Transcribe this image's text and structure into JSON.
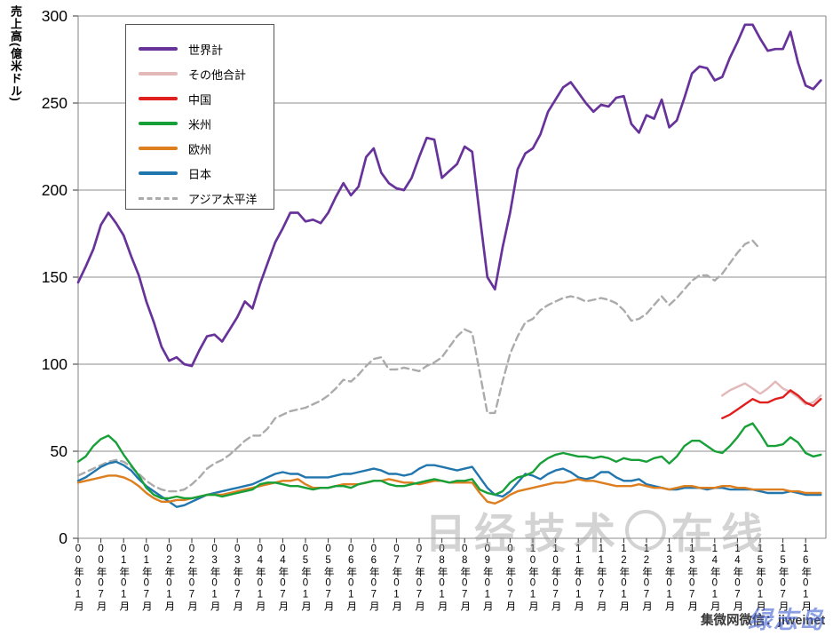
{
  "watermarks": {
    "center_left": "日经技术",
    "center_right": "在线",
    "credit": "集微网微信：jiweinet",
    "signature": "绿志岛"
  },
  "chart_data": {
    "type": "line",
    "title": "",
    "xlabel": "",
    "ylabel": "売上高(億米ドル)",
    "ylim": [
      0,
      300
    ],
    "y_ticks": [
      0,
      50,
      100,
      150,
      200,
      250,
      300
    ],
    "grid": true,
    "legend_position": "top-left",
    "x_start": "2000-01",
    "x_step_months": 2,
    "x_tick_labels": [
      "00年01月",
      "00年07月",
      "01年01月",
      "01年07月",
      "02年01月",
      "02年07月",
      "03年01月",
      "03年07月",
      "04年01月",
      "04年07月",
      "05年01月",
      "05年07月",
      "06年01月",
      "06年07月",
      "07年01月",
      "07年07月",
      "08年01月",
      "08年07月",
      "09年01月",
      "09年07月",
      "10年01月",
      "10年07月",
      "11年01月",
      "11年07月",
      "12年01月",
      "12年07月",
      "13年01月",
      "13年07月",
      "14年01月",
      "14年07月",
      "15年01月",
      "15年07月",
      "16年01月"
    ],
    "series": [
      {
        "id": "world",
        "name": "世界計",
        "color": "#67339A",
        "dash": false,
        "width": 2.7,
        "start_index": 0,
        "values": [
          147,
          156,
          166,
          180,
          187,
          181,
          174,
          162,
          151,
          136,
          124,
          110,
          102,
          104,
          100,
          99,
          108,
          116,
          117,
          113,
          120,
          127,
          136,
          132,
          146,
          158,
          170,
          178,
          187,
          187,
          182,
          183,
          181,
          187,
          196,
          204,
          197,
          202,
          219,
          224,
          210,
          204,
          201,
          200,
          207,
          219,
          230,
          229,
          207,
          211,
          215,
          225,
          222,
          185,
          150,
          143,
          167,
          187,
          212,
          221,
          224,
          232,
          245,
          252,
          259,
          262,
          256,
          250,
          245,
          249,
          248,
          253,
          254,
          238,
          233,
          243,
          241,
          252,
          236,
          240,
          253,
          267,
          271,
          270,
          263,
          265,
          276,
          285,
          295,
          295,
          287,
          280,
          281,
          281,
          291,
          273,
          260,
          258,
          263
        ]
      },
      {
        "id": "other_total",
        "name": "その他合計",
        "color": "#E2B8B8",
        "dash": false,
        "width": 2.4,
        "start_index": 85,
        "values": [
          82,
          85,
          87,
          89,
          86,
          83,
          86,
          90,
          86,
          84,
          81,
          77,
          78,
          82
        ]
      },
      {
        "id": "china",
        "name": "中国",
        "color": "#E01F1F",
        "dash": false,
        "width": 2.4,
        "start_index": 85,
        "values": [
          69,
          71,
          74,
          77,
          80,
          78,
          78,
          80,
          81,
          85,
          82,
          78,
          76,
          80
        ]
      },
      {
        "id": "americas",
        "name": "米州",
        "color": "#18A038",
        "dash": false,
        "width": 2.4,
        "start_index": 0,
        "values": [
          44,
          47,
          53,
          57,
          59,
          55,
          48,
          42,
          36,
          29,
          25,
          23,
          23,
          24,
          23,
          23,
          24,
          25,
          25,
          24,
          25,
          26,
          27,
          28,
          31,
          32,
          32,
          31,
          30,
          30,
          29,
          28,
          29,
          29,
          30,
          30,
          29,
          31,
          32,
          33,
          33,
          31,
          30,
          30,
          31,
          32,
          33,
          34,
          33,
          32,
          33,
          33,
          34,
          28,
          26,
          25,
          27,
          32,
          35,
          36,
          38,
          43,
          46,
          48,
          49,
          48,
          47,
          47,
          46,
          47,
          46,
          44,
          46,
          45,
          45,
          44,
          46,
          47,
          43,
          47,
          53,
          56,
          56,
          53,
          50,
          49,
          53,
          58,
          64,
          66,
          60,
          53,
          53,
          54,
          58,
          55,
          49,
          47,
          48
        ]
      },
      {
        "id": "europe",
        "name": "欧州",
        "color": "#DD7E1F",
        "dash": false,
        "width": 2.4,
        "start_index": 0,
        "values": [
          32,
          33,
          34,
          35,
          36,
          36,
          35,
          33,
          30,
          26,
          23,
          21,
          21,
          22,
          22,
          23,
          24,
          25,
          25,
          25,
          26,
          27,
          28,
          29,
          30,
          31,
          32,
          33,
          33,
          34,
          31,
          29,
          29,
          29,
          30,
          31,
          31,
          31,
          32,
          33,
          33,
          34,
          33,
          32,
          32,
          31,
          32,
          33,
          33,
          32,
          32,
          32,
          32,
          26,
          21,
          20,
          22,
          25,
          27,
          28,
          29,
          30,
          31,
          32,
          32,
          33,
          34,
          33,
          33,
          32,
          31,
          30,
          30,
          30,
          31,
          30,
          29,
          29,
          28,
          29,
          30,
          30,
          29,
          29,
          29,
          30,
          30,
          29,
          29,
          28,
          28,
          28,
          28,
          28,
          27,
          27,
          26,
          26,
          26
        ]
      },
      {
        "id": "japan",
        "name": "日本",
        "color": "#2176AE",
        "dash": false,
        "width": 2.4,
        "start_index": 0,
        "values": [
          33,
          35,
          38,
          41,
          43,
          44,
          42,
          39,
          34,
          30,
          27,
          24,
          21,
          18,
          19,
          21,
          23,
          25,
          26,
          27,
          28,
          29,
          30,
          31,
          33,
          35,
          37,
          38,
          37,
          37,
          35,
          35,
          35,
          35,
          36,
          37,
          37,
          38,
          39,
          40,
          39,
          37,
          37,
          36,
          37,
          40,
          42,
          42,
          41,
          40,
          39,
          40,
          41,
          35,
          29,
          25,
          24,
          27,
          32,
          37,
          36,
          34,
          37,
          39,
          40,
          38,
          35,
          34,
          35,
          38,
          38,
          35,
          33,
          33,
          34,
          31,
          30,
          29,
          28,
          28,
          29,
          29,
          29,
          28,
          29,
          29,
          28,
          28,
          28,
          28,
          27,
          26,
          26,
          26,
          27,
          26,
          25,
          25,
          25
        ]
      },
      {
        "id": "asia_pacific",
        "name": "アジア太平洋",
        "color": "#ABABAB",
        "dash": true,
        "width": 2.4,
        "start_index": 0,
        "values": [
          36,
          38,
          40,
          42,
          44,
          45,
          44,
          41,
          37,
          33,
          30,
          28,
          27,
          27,
          28,
          31,
          35,
          40,
          43,
          45,
          48,
          52,
          56,
          59,
          59,
          63,
          69,
          71,
          73,
          74,
          75,
          77,
          79,
          82,
          86,
          91,
          90,
          94,
          99,
          103,
          104,
          97,
          97,
          98,
          97,
          96,
          99,
          101,
          104,
          110,
          116,
          120,
          118,
          95,
          72,
          72,
          90,
          106,
          116,
          124,
          126,
          131,
          134,
          136,
          138,
          139,
          138,
          136,
          137,
          138,
          137,
          135,
          131,
          125,
          126,
          129,
          134,
          139,
          134,
          138,
          143,
          148,
          151,
          151,
          148,
          152,
          158,
          164,
          169,
          171,
          166
        ]
      }
    ],
    "draw_order": [
      "asia_pacific",
      "japan",
      "europe",
      "americas",
      "other_total",
      "china",
      "world"
    ],
    "plot_border_color": "#808080",
    "grid_color": "#8C8C8C"
  }
}
